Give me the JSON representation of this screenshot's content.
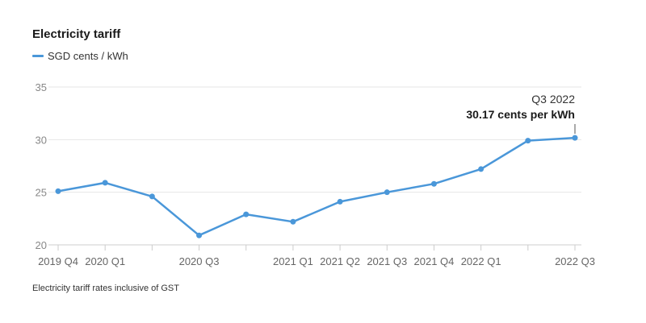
{
  "chart_data": {
    "type": "line",
    "title": "Electricity tariff",
    "xlabel": "",
    "ylabel": "",
    "ylim": [
      20,
      35
    ],
    "yticks": [
      20,
      25,
      30,
      35
    ],
    "grid": true,
    "legend_position": "top-left",
    "x": [
      "2019 Q4",
      "2020 Q1",
      "2020 Q2",
      "2020 Q3",
      "2020 Q4",
      "2021 Q1",
      "2021 Q2",
      "2021 Q3",
      "2021 Q4",
      "2022 Q1",
      "2022 Q2",
      "2022 Q3"
    ],
    "x_tick_labels": [
      "2019 Q4",
      "2020 Q1",
      "",
      "2020 Q3",
      "",
      "2021 Q1",
      "2021 Q2",
      "2021 Q3",
      "2021 Q4",
      "2022 Q1",
      "",
      "2022 Q3"
    ],
    "series": [
      {
        "name": "SGD cents / kWh",
        "color": "#4a97d9",
        "values": [
          25.1,
          25.9,
          24.6,
          20.9,
          22.9,
          22.2,
          24.1,
          25.0,
          25.8,
          27.2,
          29.9,
          30.17
        ]
      }
    ],
    "annotation": {
      "point_index": 11,
      "line1": "Q3 2022",
      "line2": "30.17 cents per kWh"
    },
    "footnote": "Electricity tariff rates inclusive of GST"
  }
}
